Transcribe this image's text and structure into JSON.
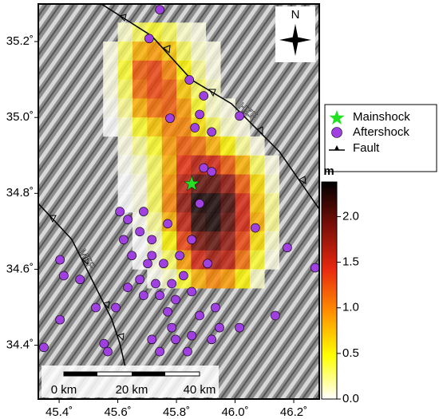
{
  "chart_data": {
    "type": "slipmap",
    "xlim": [
      45.329,
      46.287
    ],
    "ylim": [
      34.258,
      35.299
    ],
    "xticks": [
      {
        "value": 45.4,
        "label": "45.4˚"
      },
      {
        "value": 45.6,
        "label": "45.6˚"
      },
      {
        "value": 45.8,
        "label": "45.8˚"
      },
      {
        "value": 46.0,
        "label": "46.0˚"
      },
      {
        "value": 46.2,
        "label": "46.2˚"
      }
    ],
    "yticks": [
      {
        "value": 34.4,
        "label": "34.4˚"
      },
      {
        "value": 34.6,
        "label": "34.6˚"
      },
      {
        "value": 34.8,
        "label": "34.8˚"
      },
      {
        "value": 35.0,
        "label": "35.0˚"
      },
      {
        "value": 35.2,
        "label": "35.2˚"
      }
    ],
    "north_label": "N",
    "fault_labels": [
      "HZF",
      "MFF"
    ],
    "scale_labels": [
      "0 km",
      "20 km",
      "40 km"
    ],
    "legend": {
      "items": [
        "Mainshock",
        "Aftershock",
        "Fault"
      ],
      "colors": [
        "#22e022",
        "#a040e0",
        "#000000"
      ]
    },
    "colorbar": {
      "title": "m",
      "lim": [
        0,
        2.38
      ],
      "colors": [
        "#ffffff",
        "#ffff00",
        "#ff9000",
        "#e82810",
        "#7a1008",
        "#000000"
      ],
      "ticks": [
        {
          "value": 0,
          "label": "0.0"
        },
        0.5,
        {
          "value": 1,
          "label": "1.0"
        },
        1.5,
        {
          "value": 2,
          "label": "2.0"
        }
      ]
    },
    "slip": {
      "lon0": 45.55,
      "lat0": 35.25,
      "step": 0.05,
      "values": [
        [
          null,
          0.1,
          0.3,
          0.4,
          0.3,
          0.1,
          0.05,
          null,
          null,
          null,
          null,
          null
        ],
        [
          0.05,
          0.3,
          0.8,
          0.9,
          0.7,
          0.3,
          0.1,
          0.05,
          null,
          null,
          null,
          null
        ],
        [
          0.05,
          0.4,
          1.2,
          1.3,
          1.0,
          0.5,
          0.2,
          0.05,
          null,
          null,
          null,
          null
        ],
        [
          0.05,
          0.3,
          1.1,
          1.3,
          1.2,
          0.7,
          0.3,
          0.1,
          null,
          null,
          null,
          null
        ],
        [
          0.02,
          0.2,
          0.8,
          1.1,
          1.2,
          0.9,
          0.4,
          0.1,
          0.05,
          null,
          null,
          null
        ],
        [
          0,
          0.1,
          0.4,
          0.7,
          1.0,
          1.0,
          0.6,
          0.3,
          0.1,
          0.05,
          null,
          null
        ],
        [
          null,
          0.05,
          0.2,
          0.4,
          0.9,
          1.2,
          1.1,
          0.8,
          0.5,
          0.2,
          0.05,
          null
        ],
        [
          null,
          0.02,
          0.1,
          0.3,
          0.8,
          1.4,
          1.6,
          1.5,
          1.2,
          0.8,
          0.3,
          0.05
        ],
        [
          null,
          0,
          0.05,
          0.3,
          0.9,
          1.6,
          2.0,
          2.0,
          1.8,
          1.2,
          0.6,
          0.1
        ],
        [
          null,
          0,
          0.05,
          0.3,
          1.0,
          1.8,
          2.3,
          2.3,
          2.1,
          1.5,
          0.7,
          0.2
        ],
        [
          null,
          null,
          0.02,
          0.2,
          0.8,
          1.6,
          2.2,
          2.3,
          2.0,
          1.5,
          0.8,
          0.2
        ],
        [
          null,
          null,
          0,
          0.1,
          0.5,
          1.3,
          1.9,
          2.0,
          1.8,
          1.3,
          0.6,
          0.1
        ],
        [
          null,
          null,
          0,
          0.05,
          0.3,
          0.9,
          1.5,
          1.7,
          1.6,
          1.1,
          0.4,
          0.05
        ],
        [
          null,
          null,
          null,
          0.02,
          0.1,
          0.4,
          0.8,
          1.0,
          0.9,
          0.5,
          0.1,
          null
        ]
      ]
    },
    "mainshock": {
      "lon": 45.852,
      "lat": 34.825
    },
    "aftershocks": {
      "lon": [
        45.743,
        45.707,
        45.844,
        45.879,
        45.893,
        45.863,
        45.778,
        45.92,
        46.015,
        45.607,
        45.634,
        45.688,
        45.675,
        45.62,
        45.716,
        45.77,
        45.648,
        45.702,
        45.756,
        45.811,
        45.824,
        45.784,
        45.729,
        45.675,
        45.634,
        45.688,
        45.743,
        45.797,
        45.852,
        45.77,
        45.784,
        45.797,
        45.852,
        45.838,
        45.879,
        45.933,
        45.92,
        45.743,
        45.716,
        45.566,
        45.553,
        45.403,
        45.416,
        45.471,
        45.403,
        45.348,
        45.525,
        45.893,
        45.879,
        45.92,
        46.273,
        46.178,
        46.069,
        46.137,
        46.015,
        45.947,
        45.716,
        45.852,
        45.906,
        45.593
      ],
      "lat": [
        35.284,
        35.208,
        35.099,
        35.008,
        35.057,
        34.973,
        34.998,
        34.962,
        35.004,
        34.752,
        34.731,
        34.752,
        34.699,
        34.678,
        34.678,
        34.72,
        34.636,
        34.615,
        34.615,
        34.636,
        34.583,
        34.562,
        34.562,
        34.573,
        34.552,
        34.531,
        34.531,
        34.52,
        34.541,
        34.488,
        34.446,
        34.415,
        34.425,
        34.383,
        34.478,
        34.499,
        34.415,
        34.383,
        34.415,
        34.383,
        34.404,
        34.625,
        34.583,
        34.573,
        34.467,
        34.394,
        34.499,
        34.867,
        34.773,
        34.857,
        34.604,
        34.657,
        34.709,
        34.478,
        34.446,
        34.446,
        34.636,
        34.678,
        34.615,
        34.499
      ]
    }
  }
}
